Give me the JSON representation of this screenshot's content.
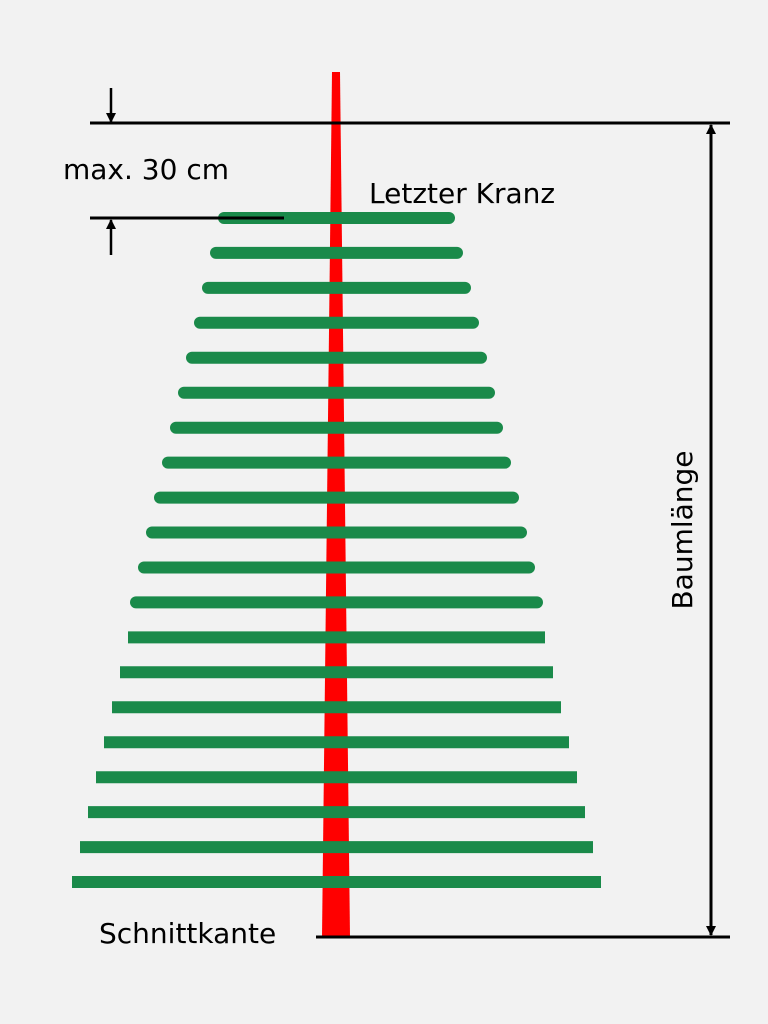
{
  "labels": {
    "max_gap": "max. 30 cm",
    "last_whorl": "Letzter Kranz",
    "cut_edge": "Schnittkante",
    "tree_length": "Baumlänge"
  },
  "branch_count": 20,
  "colors": {
    "background": "#f2f2f2",
    "trunk": "#ff0000",
    "branches": "#1a8a4a",
    "lines": "#000000"
  }
}
